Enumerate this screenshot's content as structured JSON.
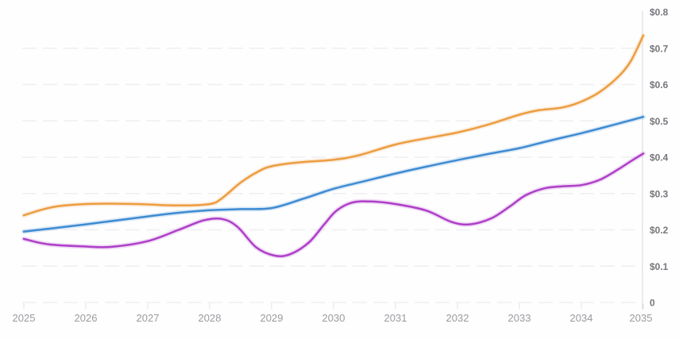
{
  "chart_data": {
    "type": "line",
    "title": "",
    "legend": "none",
    "axes": {
      "x_min": 2025,
      "x_max": 2035,
      "y_min": 0,
      "y_max": 0.8,
      "y_axis_side": "right",
      "grid_style": "dashed",
      "grid_on": true
    },
    "x_tick_labels": [
      "2025",
      "2026",
      "2027",
      "2028",
      "2029",
      "2030",
      "2031",
      "2032",
      "2033",
      "2034",
      "2035"
    ],
    "x_tick_values": [
      2025,
      2026,
      2027,
      2028,
      2029,
      2030,
      2031,
      2032,
      2033,
      2034,
      2035
    ],
    "y_tick_labels": [
      "$0.8",
      "$0.7",
      "$0.6",
      "$0.5",
      "$0.4",
      "$0.3",
      "$0.2",
      "$0.1",
      "0"
    ],
    "y_tick_values": [
      0.8,
      0.7,
      0.6,
      0.5,
      0.4,
      0.3,
      0.2,
      0.1,
      0
    ],
    "gridline_values": [
      0,
      0.1,
      0.2,
      0.3,
      0.4,
      0.5,
      0.6,
      0.7
    ],
    "series": [
      {
        "name": "upper-orange-line",
        "color": "#EC9D40",
        "points": [
          [
            2025,
            0.24
          ],
          [
            2025.3,
            0.256
          ],
          [
            2025.6,
            0.266
          ],
          [
            2026,
            0.271
          ],
          [
            2026.5,
            0.272
          ],
          [
            2027,
            0.27
          ],
          [
            2027.5,
            0.267
          ],
          [
            2028,
            0.271
          ],
          [
            2028.2,
            0.287
          ],
          [
            2028.5,
            0.33
          ],
          [
            2028.8,
            0.362
          ],
          [
            2029,
            0.375
          ],
          [
            2029.4,
            0.385
          ],
          [
            2030,
            0.393
          ],
          [
            2030.4,
            0.405
          ],
          [
            2031,
            0.435
          ],
          [
            2031.5,
            0.452
          ],
          [
            2032,
            0.468
          ],
          [
            2032.5,
            0.49
          ],
          [
            2033,
            0.517
          ],
          [
            2033.3,
            0.529
          ],
          [
            2033.7,
            0.537
          ],
          [
            2034,
            0.553
          ],
          [
            2034.3,
            0.58
          ],
          [
            2034.6,
            0.622
          ],
          [
            2034.8,
            0.665
          ],
          [
            2035,
            0.735
          ]
        ]
      },
      {
        "name": "middle-blue-line",
        "color": "#3E8BD2",
        "points": [
          [
            2025,
            0.195
          ],
          [
            2025.5,
            0.205
          ],
          [
            2026,
            0.215
          ],
          [
            2026.5,
            0.226
          ],
          [
            2027,
            0.237
          ],
          [
            2027.5,
            0.247
          ],
          [
            2028,
            0.254
          ],
          [
            2028.5,
            0.257
          ],
          [
            2029,
            0.26
          ],
          [
            2029.5,
            0.285
          ],
          [
            2030,
            0.313
          ],
          [
            2030.5,
            0.334
          ],
          [
            2031,
            0.355
          ],
          [
            2031.5,
            0.374
          ],
          [
            2032,
            0.392
          ],
          [
            2032.5,
            0.409
          ],
          [
            2033,
            0.425
          ],
          [
            2033.5,
            0.446
          ],
          [
            2034,
            0.466
          ],
          [
            2034.5,
            0.488
          ],
          [
            2035,
            0.511
          ]
        ]
      },
      {
        "name": "lower-magenta-line",
        "color": "#AE3FC8",
        "points": [
          [
            2025,
            0.175
          ],
          [
            2025.4,
            0.16
          ],
          [
            2026,
            0.154
          ],
          [
            2026.4,
            0.153
          ],
          [
            2027,
            0.169
          ],
          [
            2027.5,
            0.2
          ],
          [
            2027.9,
            0.226
          ],
          [
            2028.2,
            0.23
          ],
          [
            2028.45,
            0.208
          ],
          [
            2028.75,
            0.152
          ],
          [
            2029.05,
            0.129
          ],
          [
            2029.3,
            0.133
          ],
          [
            2029.6,
            0.165
          ],
          [
            2029.85,
            0.215
          ],
          [
            2030.05,
            0.253
          ],
          [
            2030.3,
            0.275
          ],
          [
            2030.6,
            0.278
          ],
          [
            2031,
            0.271
          ],
          [
            2031.5,
            0.253
          ],
          [
            2031.9,
            0.222
          ],
          [
            2032.2,
            0.215
          ],
          [
            2032.55,
            0.232
          ],
          [
            2032.85,
            0.265
          ],
          [
            2033.1,
            0.295
          ],
          [
            2033.4,
            0.314
          ],
          [
            2033.7,
            0.32
          ],
          [
            2034,
            0.323
          ],
          [
            2034.3,
            0.338
          ],
          [
            2034.6,
            0.367
          ],
          [
            2034.8,
            0.389
          ],
          [
            2035,
            0.41
          ]
        ]
      }
    ]
  },
  "colors": {
    "background": "#fefefe",
    "axis_line": "#d8d8db",
    "gridline": "#efeff2",
    "tick": "#e1e1e5",
    "x_label": "#9b9ba0",
    "y_label": "#76767c"
  }
}
